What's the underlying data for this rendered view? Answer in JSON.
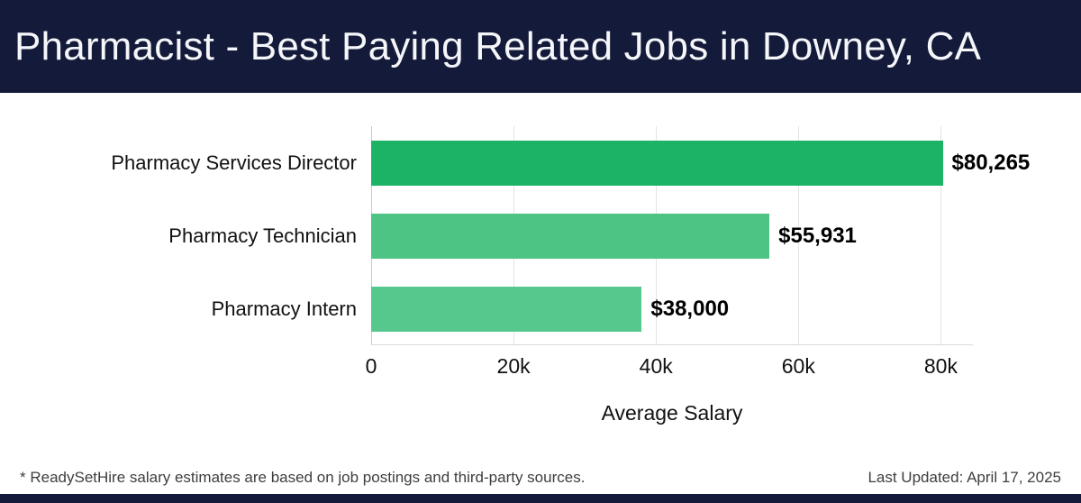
{
  "header": {
    "title": "Pharmacist - Best Paying Related Jobs in Downey, CA"
  },
  "chart_data": {
    "type": "bar",
    "orientation": "horizontal",
    "title": "Pharmacist - Best Paying Related Jobs in Downey, CA",
    "categories": [
      "Pharmacy Services Director",
      "Pharmacy Technician",
      "Pharmacy Intern"
    ],
    "values": [
      80265,
      55931,
      38000
    ],
    "value_labels": [
      "$80,265",
      "$55,931",
      "$38,000"
    ],
    "bar_colors": [
      "#1db366",
      "#4ec484",
      "#56c88d"
    ],
    "xlabel": "Average Salary",
    "ylabel": "",
    "xlim": [
      0,
      84500
    ],
    "x_ticks": [
      {
        "value": 0,
        "label": "0"
      },
      {
        "value": 20000,
        "label": "20k"
      },
      {
        "value": 40000,
        "label": "40k"
      },
      {
        "value": 60000,
        "label": "60k"
      },
      {
        "value": 80000,
        "label": "80k"
      }
    ],
    "grid": "vertical",
    "legend": "none"
  },
  "footer": {
    "note": "* ReadySetHire salary estimates are based on job postings and third-party sources.",
    "updated": "Last Updated: April 17, 2025"
  },
  "colors": {
    "header_bg": "#141a39",
    "bottom_strip_bg": "#141a39",
    "gridline": "#e3e3e3",
    "value_label": "#000000",
    "footer_text": "#3e3e3e"
  }
}
